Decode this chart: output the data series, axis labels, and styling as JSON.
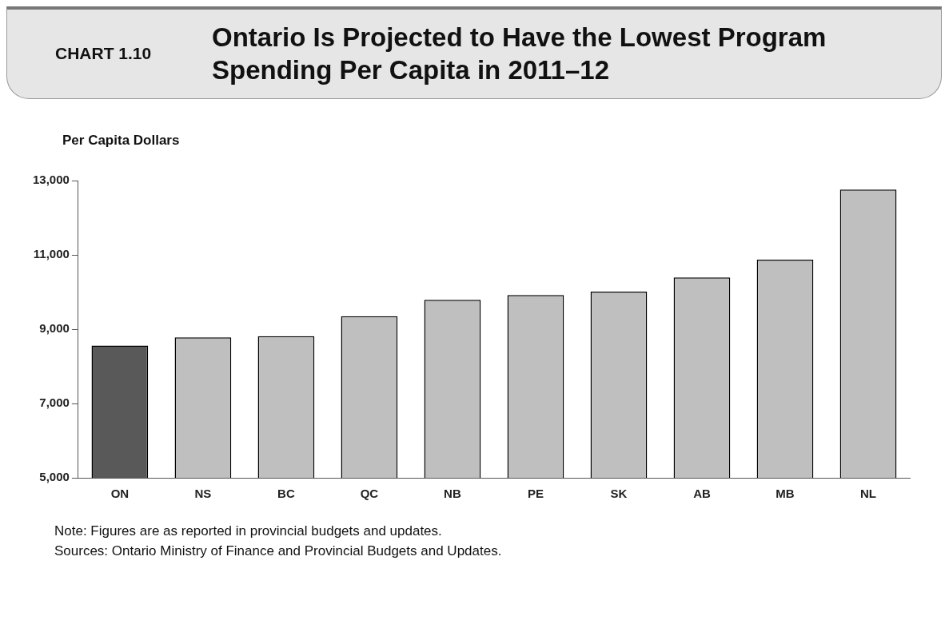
{
  "chart_data": {
    "type": "bar",
    "title": "Ontario Is Projected to Have the Lowest Program Spending Per Capita in 2011–12",
    "subtitle": "CHART 1.10",
    "ylabel": "Per Capita Dollars",
    "categories": [
      "ON",
      "NS",
      "BC",
      "QC",
      "NB",
      "PE",
      "SK",
      "AB",
      "MB",
      "NL"
    ],
    "values": [
      8560,
      8780,
      8810,
      9350,
      9790,
      9920,
      10010,
      10390,
      10870,
      12760
    ],
    "colors": [
      "#595959",
      "#bfbfbf",
      "#bfbfbf",
      "#bfbfbf",
      "#bfbfbf",
      "#bfbfbf",
      "#bfbfbf",
      "#bfbfbf",
      "#bfbfbf",
      "#bfbfbf"
    ],
    "ylim": [
      5000,
      13000
    ],
    "yticks": [
      {
        "value": 5000,
        "label": "5,000"
      },
      {
        "value": 7000,
        "label": "7,000"
      },
      {
        "value": 9000,
        "label": "9,000"
      },
      {
        "value": 11000,
        "label": "11,000"
      },
      {
        "value": 13000,
        "label": "13,000"
      }
    ],
    "grid": false,
    "legend": false,
    "annotations": [
      "Note: Figures are as reported in provincial budgets and updates.",
      "Sources: Ontario Ministry of Finance and Provincial Budgets and Updates."
    ]
  }
}
